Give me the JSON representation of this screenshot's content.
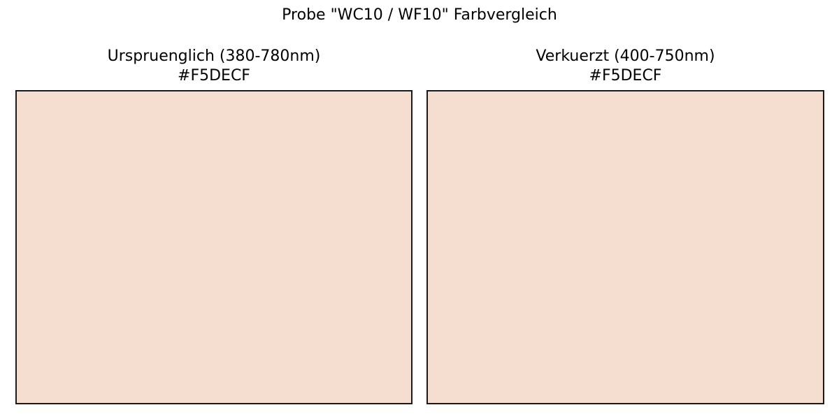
{
  "title": "Probe \"WC10 / WF10\" Farbvergleich",
  "chart_data": [
    {
      "type": "heatmap",
      "title": "Urspruenglich (380-780nm)",
      "hex_label": "#F5DECF",
      "color": "#F5DECF",
      "xlabel": "",
      "ylabel": "",
      "grid": false
    },
    {
      "type": "heatmap",
      "title": "Verkuerzt (400-750nm)",
      "hex_label": "#F5DECF",
      "color": "#F5DECF",
      "xlabel": "",
      "ylabel": "",
      "grid": false
    }
  ]
}
